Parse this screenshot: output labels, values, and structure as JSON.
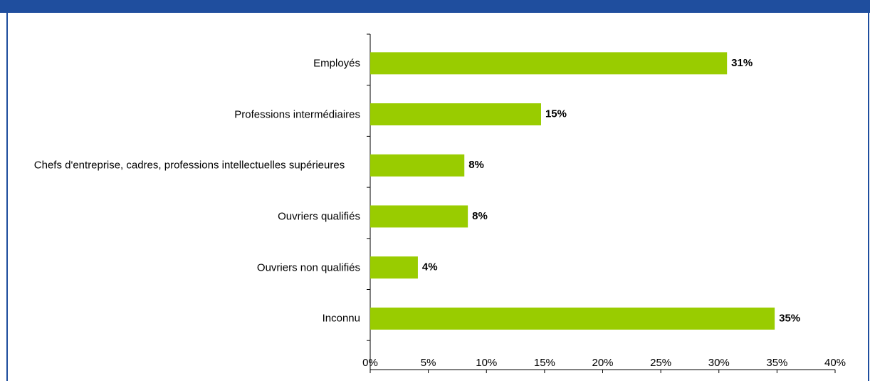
{
  "chart_data": {
    "type": "bar",
    "orientation": "horizontal",
    "categories": [
      "Employés",
      "Professions intermédiaires",
      "Chefs d'entreprise, cadres, professions intellectuelles supérieures",
      "Ouvriers qualifiés",
      "Ouvriers non qualifiés",
      "Inconnu"
    ],
    "values": [
      30.7,
      14.7,
      8.1,
      8.4,
      4.1,
      34.8
    ],
    "value_labels": [
      "31%",
      "15%",
      "8%",
      "8%",
      "4%",
      "35%"
    ],
    "color": "#99cc00",
    "xlim": [
      0,
      40
    ],
    "xticks": [
      {
        "value": 0,
        "label": "0%"
      },
      {
        "value": 5,
        "label": "5%"
      },
      {
        "value": 10,
        "label": "10%"
      },
      {
        "value": 15,
        "label": "15%"
      },
      {
        "value": 20,
        "label": "20%"
      },
      {
        "value": 25,
        "label": "25%"
      },
      {
        "value": 30,
        "label": "30%"
      },
      {
        "value": 35,
        "label": "35%"
      },
      {
        "value": 40,
        "label": "40%"
      }
    ],
    "grid": false
  }
}
